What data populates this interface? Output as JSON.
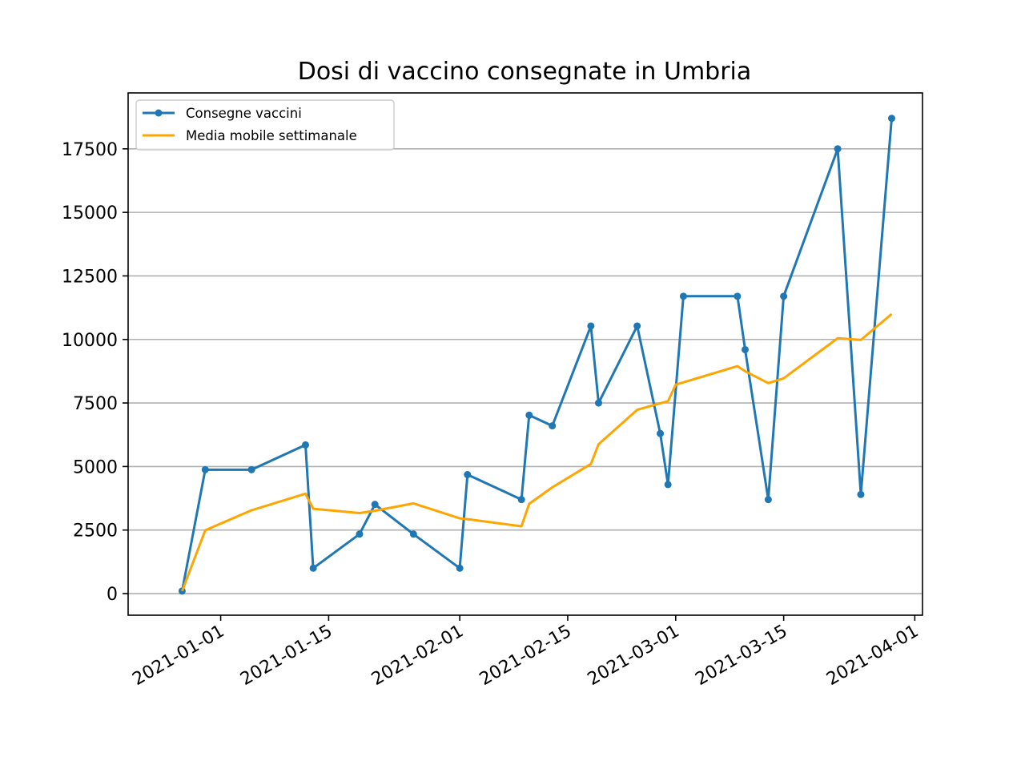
{
  "chart_data": {
    "type": "line",
    "title": "Dosi di vaccino consegnate in Umbria",
    "xlabel": "",
    "ylabel": "",
    "x_axis": {
      "type": "date",
      "range": [
        "2020-12-20",
        "2021-04-02"
      ],
      "ticks": [
        "2021-01-01",
        "2021-01-15",
        "2021-02-01",
        "2021-02-15",
        "2021-03-01",
        "2021-03-15",
        "2021-04-01"
      ]
    },
    "y_axis": {
      "range": [
        -850,
        19700
      ],
      "ticks": [
        0,
        2500,
        5000,
        7500,
        10000,
        12500,
        15000,
        17500
      ]
    },
    "grid": "y",
    "legend": {
      "placement": "top-left"
    },
    "series": [
      {
        "name": "Consegne vaccini",
        "color": "#1f77b4",
        "marker": "circle",
        "points": [
          {
            "x": "2020-12-27",
            "y": 100
          },
          {
            "x": "2020-12-30",
            "y": 4875
          },
          {
            "x": "2021-01-05",
            "y": 4875
          },
          {
            "x": "2021-01-12",
            "y": 5850
          },
          {
            "x": "2021-01-13",
            "y": 1000
          },
          {
            "x": "2021-01-19",
            "y": 2340
          },
          {
            "x": "2021-01-21",
            "y": 3510
          },
          {
            "x": "2021-01-26",
            "y": 2340
          },
          {
            "x": "2021-02-01",
            "y": 1000
          },
          {
            "x": "2021-02-02",
            "y": 4680
          },
          {
            "x": "2021-02-09",
            "y": 3700
          },
          {
            "x": "2021-02-10",
            "y": 7020
          },
          {
            "x": "2021-02-13",
            "y": 6600
          },
          {
            "x": "2021-02-18",
            "y": 10530
          },
          {
            "x": "2021-02-19",
            "y": 7500
          },
          {
            "x": "2021-02-24",
            "y": 10530
          },
          {
            "x": "2021-02-27",
            "y": 6300
          },
          {
            "x": "2021-02-28",
            "y": 4290
          },
          {
            "x": "2021-03-02",
            "y": 11700
          },
          {
            "x": "2021-03-09",
            "y": 11700
          },
          {
            "x": "2021-03-10",
            "y": 9600
          },
          {
            "x": "2021-03-13",
            "y": 3700
          },
          {
            "x": "2021-03-15",
            "y": 11700
          },
          {
            "x": "2021-03-22",
            "y": 17500
          },
          {
            "x": "2021-03-25",
            "y": 3900
          },
          {
            "x": "2021-03-29",
            "y": 18700
          }
        ]
      },
      {
        "name": "Media mobile settimanale",
        "color": "#ffa500",
        "marker": "none",
        "points": [
          {
            "x": "2020-12-27",
            "y": 100
          },
          {
            "x": "2020-12-30",
            "y": 2490
          },
          {
            "x": "2021-01-05",
            "y": 3280
          },
          {
            "x": "2021-01-12",
            "y": 3930
          },
          {
            "x": "2021-01-13",
            "y": 3340
          },
          {
            "x": "2021-01-19",
            "y": 3170
          },
          {
            "x": "2021-01-21",
            "y": 3260
          },
          {
            "x": "2021-01-26",
            "y": 3550
          },
          {
            "x": "2021-02-01",
            "y": 2960
          },
          {
            "x": "2021-02-02",
            "y": 2930
          },
          {
            "x": "2021-02-09",
            "y": 2650
          },
          {
            "x": "2021-02-10",
            "y": 3530
          },
          {
            "x": "2021-02-13",
            "y": 4180
          },
          {
            "x": "2021-02-18",
            "y": 5100
          },
          {
            "x": "2021-02-19",
            "y": 5880
          },
          {
            "x": "2021-02-24",
            "y": 7230
          },
          {
            "x": "2021-02-27",
            "y": 7490
          },
          {
            "x": "2021-02-28",
            "y": 7570
          },
          {
            "x": "2021-03-01",
            "y": 8220
          },
          {
            "x": "2021-03-09",
            "y": 8950
          },
          {
            "x": "2021-03-10",
            "y": 8750
          },
          {
            "x": "2021-03-13",
            "y": 8280
          },
          {
            "x": "2021-03-15",
            "y": 8470
          },
          {
            "x": "2021-03-22",
            "y": 10050
          },
          {
            "x": "2021-03-25",
            "y": 9980
          },
          {
            "x": "2021-03-29",
            "y": 11000
          }
        ]
      }
    ]
  }
}
